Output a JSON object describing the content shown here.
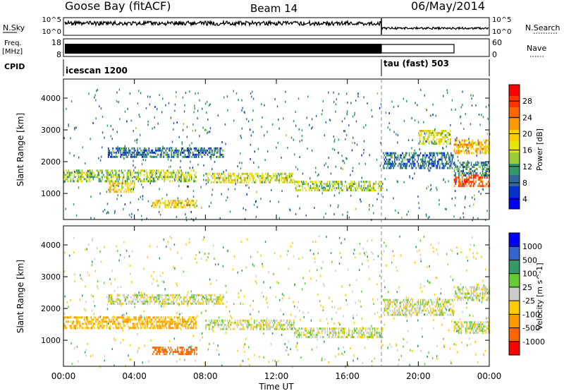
{
  "header": {
    "station": "Goose Bay (fitACF)",
    "beam": "Beam 14",
    "date": "06/May/2014"
  },
  "status_panels": {
    "nsky_label": "N.Sky",
    "nsearch_label": "N.Search",
    "log_ticks": [
      "10^5",
      "10^0"
    ],
    "freq_label": "Freq.",
    "freq_unit": "[MHz]",
    "freq_ticks": [
      "18",
      "8"
    ],
    "nave_label": "Nave",
    "nave_ticks": [
      "60",
      "0"
    ],
    "cpid_label": "CPID",
    "cpid_segments": [
      {
        "label": "icescan 1200",
        "start_hour": 0,
        "end_hour": 18
      },
      {
        "label": "tau (fast) 503",
        "start_hour": 18,
        "end_hour": 24
      }
    ],
    "tau_label": "tau (fast) 503"
  },
  "chart_data": [
    {
      "type": "heatmap",
      "title": "",
      "xlabel": "Time UT",
      "ylabel": "Slant Range [km]",
      "colorbar_label": "Power [dB]",
      "x_ticks": [
        "00:00",
        "04:00",
        "08:00",
        "12:00",
        "16:00",
        "20:00",
        "00:00"
      ],
      "xlim_hours": [
        0,
        24
      ],
      "y_ticks": [
        1000,
        2000,
        3000,
        4000
      ],
      "ylim": [
        180,
        4600
      ],
      "colorbar": {
        "ticks": [
          "28",
          "24",
          "20",
          "16",
          "12",
          "8",
          "4"
        ],
        "colors": [
          "#ff0000",
          "#ff3300",
          "#ff6600",
          "#ff9900",
          "#ffcc00",
          "#e6e600",
          "#99cc33",
          "#339966",
          "#336699",
          "#0033cc",
          "#0000ff"
        ]
      },
      "echo_regions": [
        {
          "t0": 0.0,
          "t1": 7.5,
          "r0": 1400,
          "r1": 1750,
          "level": 12
        },
        {
          "t0": 2.5,
          "t1": 9.0,
          "r0": 2150,
          "r1": 2450,
          "level": 6
        },
        {
          "t0": 8.0,
          "t1": 13.0,
          "r0": 1350,
          "r1": 1650,
          "level": 14
        },
        {
          "t0": 13.0,
          "t1": 18.0,
          "r0": 1100,
          "r1": 1400,
          "level": 12
        },
        {
          "t0": 2.5,
          "t1": 4.0,
          "r0": 1050,
          "r1": 1350,
          "level": 16
        },
        {
          "t0": 5.0,
          "t1": 7.5,
          "r0": 550,
          "r1": 800,
          "level": 16
        },
        {
          "t0": 18.0,
          "t1": 22.0,
          "r0": 1800,
          "r1": 2300,
          "level": 6
        },
        {
          "t0": 20.0,
          "t1": 21.8,
          "r0": 2600,
          "r1": 3000,
          "level": 14
        },
        {
          "t0": 22.0,
          "t1": 24.0,
          "r0": 2300,
          "r1": 2700,
          "level": 18
        },
        {
          "t0": 22.0,
          "t1": 24.0,
          "r0": 1250,
          "r1": 1600,
          "level": 24
        },
        {
          "t0": 22.0,
          "t1": 24.0,
          "r0": 1600,
          "r1": 2000,
          "level": 8
        }
      ]
    },
    {
      "type": "heatmap",
      "title": "",
      "xlabel": "Time UT",
      "ylabel": "Slant Range [km]",
      "colorbar_label": "Velocity [m s^-1]",
      "x_ticks": [
        "00:00",
        "04:00",
        "08:00",
        "12:00",
        "16:00",
        "20:00",
        "00:00"
      ],
      "xlim_hours": [
        0,
        24
      ],
      "y_ticks": [
        1000,
        2000,
        3000,
        4000
      ],
      "ylim": [
        180,
        4600
      ],
      "colorbar": {
        "ticks": [
          "1000",
          "500",
          "100",
          "25",
          "-25",
          "-100",
          "-500",
          "-1000"
        ],
        "colors": [
          "#0000ff",
          "#3366cc",
          "#339966",
          "#66cc33",
          "#cccccc",
          "#ffcc00",
          "#ff9900",
          "#ff6600",
          "#ff0000"
        ]
      },
      "echo_regions": [
        {
          "t0": 0.0,
          "t1": 7.5,
          "r0": 1400,
          "r1": 1750,
          "velocity": -100
        },
        {
          "t0": 2.5,
          "t1": 9.0,
          "r0": 2150,
          "r1": 2450,
          "velocity": 0
        },
        {
          "t0": 8.0,
          "t1": 13.0,
          "r0": 1350,
          "r1": 1650,
          "velocity": 0
        },
        {
          "t0": 13.0,
          "t1": 18.0,
          "r0": 1100,
          "r1": 1400,
          "velocity": 0
        },
        {
          "t0": 5.0,
          "t1": 7.5,
          "r0": 550,
          "r1": 800,
          "velocity": -400
        },
        {
          "t0": 18.0,
          "t1": 22.0,
          "r0": 1800,
          "r1": 2300,
          "velocity": 0
        },
        {
          "t0": 22.0,
          "t1": 24.0,
          "r0": 2300,
          "r1": 2700,
          "velocity": 0
        },
        {
          "t0": 22.0,
          "t1": 24.0,
          "r0": 1250,
          "r1": 1600,
          "velocity": 0
        }
      ]
    }
  ],
  "x_axis_title": "Time UT"
}
